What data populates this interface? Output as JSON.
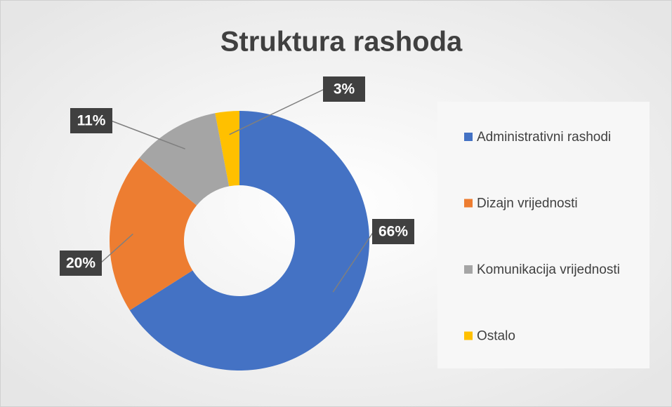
{
  "chart_data": {
    "type": "donut",
    "title": "Struktura rashoda",
    "categories": [
      "Administrativni rashodi",
      "Dizajn vrijednosti",
      "Komunikacija vrijednosti",
      "Ostalo"
    ],
    "values": [
      66,
      20,
      11,
      3
    ],
    "value_labels": [
      "66%",
      "20%",
      "11%",
      "3%"
    ],
    "colors": [
      "#4472c4",
      "#ed7d31",
      "#a5a5a5",
      "#ffc000"
    ],
    "legend": "right"
  }
}
